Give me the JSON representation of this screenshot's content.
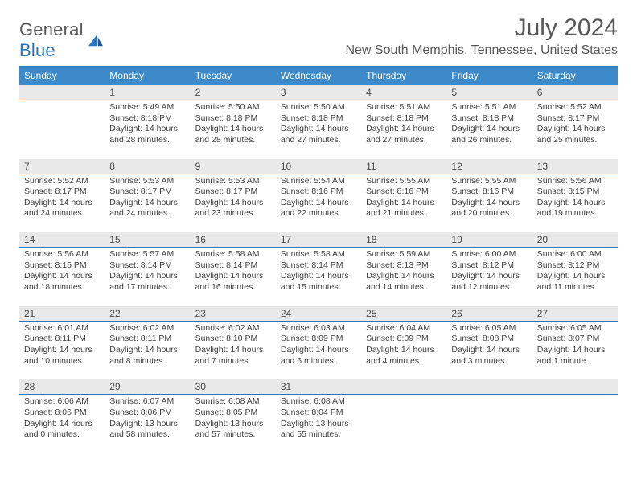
{
  "brand": {
    "part1": "General",
    "part2": "Blue"
  },
  "title": "July 2024",
  "subtitle": "New South Memphis, Tennessee, United States",
  "colors": {
    "header_bg": "#3c8ac9",
    "header_text": "#ffffff",
    "border": "#2a74b8",
    "datebar_bg": "#e9e9e9",
    "body_text": "#3f3f3f",
    "title_text": "#585858"
  },
  "day_names": [
    "Sunday",
    "Monday",
    "Tuesday",
    "Wednesday",
    "Thursday",
    "Friday",
    "Saturday"
  ],
  "weeks": [
    {
      "nums": [
        "",
        "1",
        "2",
        "3",
        "4",
        "5",
        "6"
      ],
      "rise": [
        "",
        "Sunrise: 5:49 AM",
        "Sunrise: 5:50 AM",
        "Sunrise: 5:50 AM",
        "Sunrise: 5:51 AM",
        "Sunrise: 5:51 AM",
        "Sunrise: 5:52 AM"
      ],
      "set": [
        "",
        "Sunset: 8:18 PM",
        "Sunset: 8:18 PM",
        "Sunset: 8:18 PM",
        "Sunset: 8:18 PM",
        "Sunset: 8:18 PM",
        "Sunset: 8:17 PM"
      ],
      "light": [
        "",
        "Daylight: 14 hours and 28 minutes.",
        "Daylight: 14 hours and 28 minutes.",
        "Daylight: 14 hours and 27 minutes.",
        "Daylight: 14 hours and 27 minutes.",
        "Daylight: 14 hours and 26 minutes.",
        "Daylight: 14 hours and 25 minutes."
      ]
    },
    {
      "nums": [
        "7",
        "8",
        "9",
        "10",
        "11",
        "12",
        "13"
      ],
      "rise": [
        "Sunrise: 5:52 AM",
        "Sunrise: 5:53 AM",
        "Sunrise: 5:53 AM",
        "Sunrise: 5:54 AM",
        "Sunrise: 5:55 AM",
        "Sunrise: 5:55 AM",
        "Sunrise: 5:56 AM"
      ],
      "set": [
        "Sunset: 8:17 PM",
        "Sunset: 8:17 PM",
        "Sunset: 8:17 PM",
        "Sunset: 8:16 PM",
        "Sunset: 8:16 PM",
        "Sunset: 8:16 PM",
        "Sunset: 8:15 PM"
      ],
      "light": [
        "Daylight: 14 hours and 24 minutes.",
        "Daylight: 14 hours and 24 minutes.",
        "Daylight: 14 hours and 23 minutes.",
        "Daylight: 14 hours and 22 minutes.",
        "Daylight: 14 hours and 21 minutes.",
        "Daylight: 14 hours and 20 minutes.",
        "Daylight: 14 hours and 19 minutes."
      ]
    },
    {
      "nums": [
        "14",
        "15",
        "16",
        "17",
        "18",
        "19",
        "20"
      ],
      "rise": [
        "Sunrise: 5:56 AM",
        "Sunrise: 5:57 AM",
        "Sunrise: 5:58 AM",
        "Sunrise: 5:58 AM",
        "Sunrise: 5:59 AM",
        "Sunrise: 6:00 AM",
        "Sunrise: 6:00 AM"
      ],
      "set": [
        "Sunset: 8:15 PM",
        "Sunset: 8:14 PM",
        "Sunset: 8:14 PM",
        "Sunset: 8:14 PM",
        "Sunset: 8:13 PM",
        "Sunset: 8:12 PM",
        "Sunset: 8:12 PM"
      ],
      "light": [
        "Daylight: 14 hours and 18 minutes.",
        "Daylight: 14 hours and 17 minutes.",
        "Daylight: 14 hours and 16 minutes.",
        "Daylight: 14 hours and 15 minutes.",
        "Daylight: 14 hours and 14 minutes.",
        "Daylight: 14 hours and 12 minutes.",
        "Daylight: 14 hours and 11 minutes."
      ]
    },
    {
      "nums": [
        "21",
        "22",
        "23",
        "24",
        "25",
        "26",
        "27"
      ],
      "rise": [
        "Sunrise: 6:01 AM",
        "Sunrise: 6:02 AM",
        "Sunrise: 6:02 AM",
        "Sunrise: 6:03 AM",
        "Sunrise: 6:04 AM",
        "Sunrise: 6:05 AM",
        "Sunrise: 6:05 AM"
      ],
      "set": [
        "Sunset: 8:11 PM",
        "Sunset: 8:11 PM",
        "Sunset: 8:10 PM",
        "Sunset: 8:09 PM",
        "Sunset: 8:09 PM",
        "Sunset: 8:08 PM",
        "Sunset: 8:07 PM"
      ],
      "light": [
        "Daylight: 14 hours and 10 minutes.",
        "Daylight: 14 hours and 8 minutes.",
        "Daylight: 14 hours and 7 minutes.",
        "Daylight: 14 hours and 6 minutes.",
        "Daylight: 14 hours and 4 minutes.",
        "Daylight: 14 hours and 3 minutes.",
        "Daylight: 14 hours and 1 minute."
      ]
    },
    {
      "nums": [
        "28",
        "29",
        "30",
        "31",
        "",
        "",
        ""
      ],
      "rise": [
        "Sunrise: 6:06 AM",
        "Sunrise: 6:07 AM",
        "Sunrise: 6:08 AM",
        "Sunrise: 6:08 AM",
        "",
        "",
        ""
      ],
      "set": [
        "Sunset: 8:06 PM",
        "Sunset: 8:06 PM",
        "Sunset: 8:05 PM",
        "Sunset: 8:04 PM",
        "",
        "",
        ""
      ],
      "light": [
        "Daylight: 14 hours and 0 minutes.",
        "Daylight: 13 hours and 58 minutes.",
        "Daylight: 13 hours and 57 minutes.",
        "Daylight: 13 hours and 55 minutes.",
        "",
        "",
        ""
      ]
    }
  ]
}
